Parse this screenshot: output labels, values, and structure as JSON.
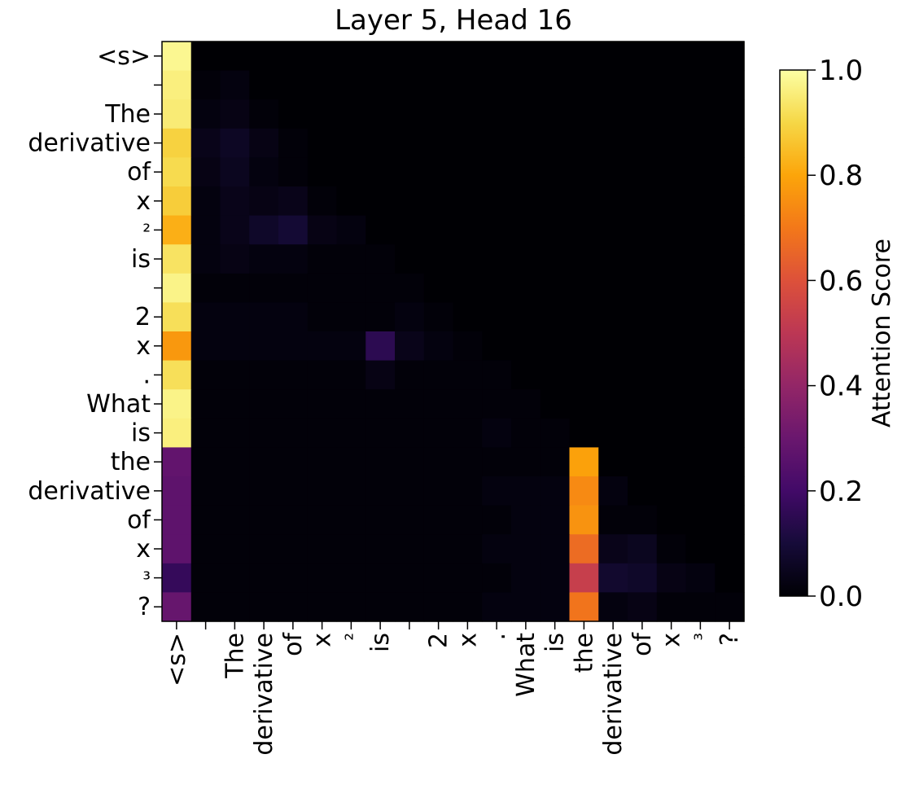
{
  "chart_data": {
    "type": "heatmap",
    "title": "Layer 5, Head 16",
    "tokens": [
      "<s>",
      " ",
      "The",
      "derivative",
      "of",
      "x",
      "²",
      "is",
      " ",
      "2",
      "x",
      ".",
      "What",
      "is",
      "the",
      "derivative",
      "of",
      "x",
      "³",
      "?"
    ],
    "colorbar": {
      "label": "Attention Score",
      "colormap": "inferno",
      "range": [
        0,
        1
      ],
      "ticks": [
        0.0,
        0.2,
        0.4,
        0.6,
        0.8,
        1.0
      ],
      "tick_labels": [
        "0.0",
        "0.2",
        "0.4",
        "0.6",
        "0.8",
        "1.0"
      ]
    },
    "matrix": [
      [
        0.98,
        0,
        0,
        0,
        0,
        0,
        0,
        0,
        0,
        0,
        0,
        0,
        0,
        0,
        0,
        0,
        0,
        0,
        0,
        0
      ],
      [
        0.96,
        0.01,
        0.02,
        0,
        0,
        0,
        0,
        0,
        0,
        0,
        0,
        0,
        0,
        0,
        0,
        0,
        0,
        0,
        0,
        0
      ],
      [
        0.95,
        0.02,
        0.03,
        0.01,
        0,
        0,
        0,
        0,
        0,
        0,
        0,
        0,
        0,
        0,
        0,
        0,
        0,
        0,
        0,
        0
      ],
      [
        0.89,
        0.04,
        0.06,
        0.03,
        0.01,
        0,
        0,
        0,
        0,
        0,
        0,
        0,
        0,
        0,
        0,
        0,
        0,
        0,
        0,
        0
      ],
      [
        0.91,
        0.03,
        0.05,
        0.02,
        0.01,
        0,
        0,
        0,
        0,
        0,
        0,
        0,
        0,
        0,
        0,
        0,
        0,
        0,
        0,
        0
      ],
      [
        0.88,
        0.02,
        0.04,
        0.03,
        0.04,
        0.01,
        0,
        0,
        0,
        0,
        0,
        0,
        0,
        0,
        0,
        0,
        0,
        0,
        0,
        0
      ],
      [
        0.82,
        0.02,
        0.04,
        0.07,
        0.09,
        0.03,
        0.02,
        0,
        0,
        0,
        0,
        0,
        0,
        0,
        0,
        0,
        0,
        0,
        0,
        0
      ],
      [
        0.93,
        0.02,
        0.03,
        0.02,
        0.02,
        0.01,
        0.01,
        0.01,
        0,
        0,
        0,
        0,
        0,
        0,
        0,
        0,
        0,
        0,
        0,
        0
      ],
      [
        0.97,
        0.01,
        0.01,
        0.01,
        0.01,
        0.01,
        0.01,
        0.01,
        0.01,
        0,
        0,
        0,
        0,
        0,
        0,
        0,
        0,
        0,
        0,
        0
      ],
      [
        0.92,
        0.02,
        0.02,
        0.02,
        0.02,
        0.01,
        0.01,
        0.01,
        0.02,
        0.01,
        0,
        0,
        0,
        0,
        0,
        0,
        0,
        0,
        0,
        0
      ],
      [
        0.77,
        0.02,
        0.02,
        0.02,
        0.02,
        0.02,
        0.02,
        0.15,
        0.04,
        0.02,
        0.01,
        0,
        0,
        0,
        0,
        0,
        0,
        0,
        0,
        0
      ],
      [
        0.92,
        0.01,
        0.01,
        0.01,
        0.01,
        0.01,
        0.01,
        0.03,
        0.01,
        0.01,
        0.01,
        0.01,
        0,
        0,
        0,
        0,
        0,
        0,
        0,
        0
      ],
      [
        0.97,
        0.01,
        0.01,
        0.01,
        0.01,
        0.01,
        0.01,
        0.01,
        0.01,
        0.01,
        0.01,
        0.01,
        0.01,
        0,
        0,
        0,
        0,
        0,
        0,
        0
      ],
      [
        0.96,
        0.01,
        0.01,
        0.01,
        0.01,
        0.01,
        0.01,
        0.01,
        0.01,
        0.01,
        0.01,
        0.02,
        0.01,
        0.01,
        0,
        0,
        0,
        0,
        0,
        0
      ],
      [
        0.28,
        0.01,
        0.01,
        0.01,
        0.01,
        0.01,
        0.01,
        0.01,
        0.01,
        0.01,
        0.01,
        0.01,
        0.01,
        0.01,
        0.79,
        0,
        0,
        0,
        0,
        0
      ],
      [
        0.27,
        0.01,
        0.01,
        0.01,
        0.01,
        0.01,
        0.01,
        0.01,
        0.01,
        0.01,
        0.01,
        0.02,
        0.02,
        0.02,
        0.74,
        0.02,
        0,
        0,
        0,
        0
      ],
      [
        0.27,
        0.01,
        0.01,
        0.01,
        0.01,
        0.01,
        0.01,
        0.01,
        0.01,
        0.01,
        0.01,
        0.01,
        0.02,
        0.02,
        0.76,
        0.01,
        0.01,
        0,
        0,
        0
      ],
      [
        0.27,
        0.01,
        0.01,
        0.01,
        0.01,
        0.01,
        0.01,
        0.01,
        0.01,
        0.01,
        0.01,
        0.02,
        0.02,
        0.02,
        0.67,
        0.04,
        0.05,
        0.01,
        0,
        0
      ],
      [
        0.17,
        0.01,
        0.01,
        0.01,
        0.01,
        0.01,
        0.01,
        0.01,
        0.01,
        0.01,
        0.01,
        0.01,
        0.02,
        0.02,
        0.53,
        0.08,
        0.07,
        0.03,
        0.02,
        0
      ],
      [
        0.29,
        0.01,
        0.01,
        0.01,
        0.01,
        0.01,
        0.01,
        0.01,
        0.01,
        0.01,
        0.01,
        0.02,
        0.02,
        0.02,
        0.69,
        0.02,
        0.03,
        0.01,
        0.01,
        0.01
      ]
    ]
  }
}
